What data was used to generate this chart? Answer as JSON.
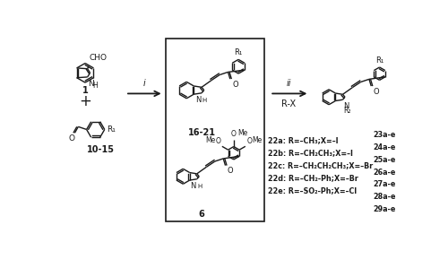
{
  "bg_color": "#ffffff",
  "text_color": "#1a1a1a",
  "figsize": [
    5.0,
    2.99
  ],
  "dpi": 100,
  "step_i": "i",
  "step_ii": "ii",
  "rx": "R-X",
  "label_1": "1",
  "label_1015": "10-15",
  "label_1621": "16-21",
  "label_6": "6",
  "haloalkanes": [
    "22a: R=–CH₃;X=–I",
    "22b: R=–CH₂CH₃;X=–I",
    "22c: R=–CH₂CH₂CH₃;X=–Br",
    "22d: R=–CH₂-Ph;X=–Br",
    "22e: R=–SO₂-Ph;X=–Cl"
  ],
  "products": [
    "23a-e",
    "24a-e",
    "25a-e",
    "26a-e",
    "27a-e",
    "28a-e",
    "29a-e"
  ]
}
